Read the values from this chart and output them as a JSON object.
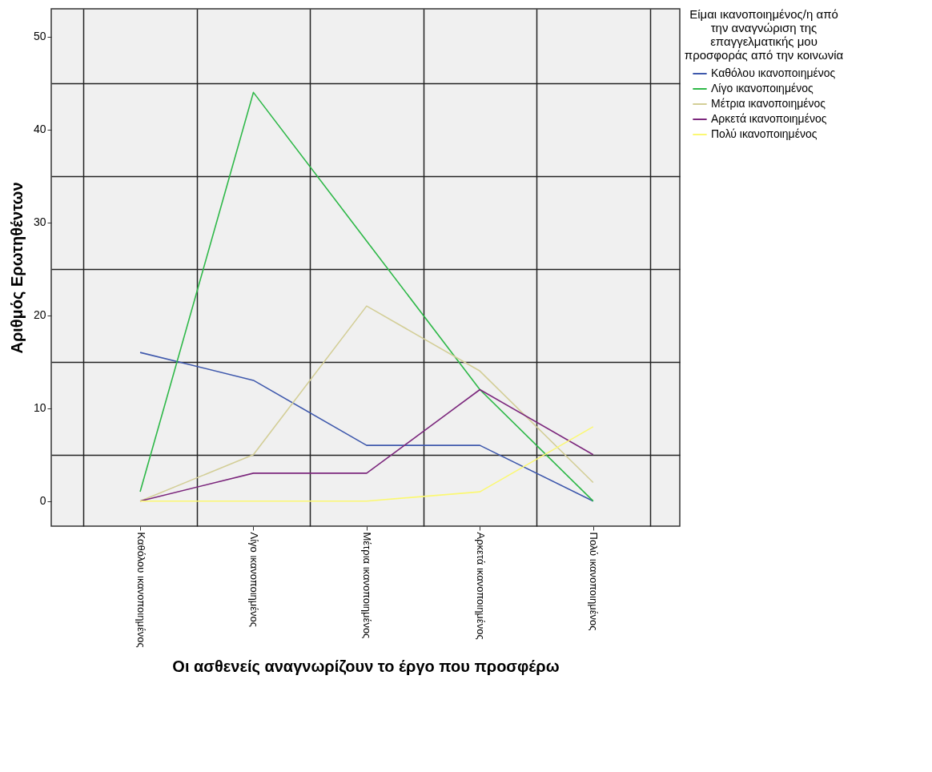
{
  "chart_data": {
    "type": "line",
    "xlabel": "Οι ασθενείς αναγνωρίζουν το έργο που προσφέρω",
    "ylabel": "Αριθμός Ερωτηθέντων",
    "legend_title": "Είμαι ικανοποιημένος/η από την αναγνώριση της επαγγελματικής μου προσφοράς από την κοινωνία",
    "categories": [
      "Καθόλου ικανοποιημένος",
      "Λίγο ικανοποιημένος",
      "Μέτρια ικανοποιημένος",
      "Αρκετά ικανοποιημένος",
      "Πολύ ικανοποιημένος"
    ],
    "series": [
      {
        "name": "Καθόλου ικανοποιημένος",
        "color": "#3e58ac",
        "values": [
          16,
          13,
          6,
          6,
          0
        ]
      },
      {
        "name": "Λίγο ικανοποιημένος",
        "color": "#2eb848",
        "values": [
          1,
          44,
          28,
          12,
          0
        ]
      },
      {
        "name": "Μέτρια ικανοποιημένος",
        "color": "#d3ce97",
        "values": [
          0,
          5,
          21,
          14,
          2
        ]
      },
      {
        "name": "Αρκετά ικανοποιημένος",
        "color": "#7c287d",
        "values": [
          0,
          3,
          3,
          12,
          5
        ]
      },
      {
        "name": "Πολύ ικανοποιημένος",
        "color": "#fbf873",
        "values": [
          0,
          0,
          0,
          1,
          8
        ]
      }
    ],
    "ylim": [
      -2.7,
      53
    ],
    "yticks": [
      0,
      {
        "value": 5,
        "label": null
      },
      10,
      {
        "value": 15,
        "label": null
      },
      20,
      {
        "value": 25,
        "label": null
      },
      30,
      {
        "value": 35,
        "label": null
      },
      40,
      {
        "value": 45,
        "label": null
      },
      50
    ],
    "grid": true,
    "legend": "right"
  }
}
